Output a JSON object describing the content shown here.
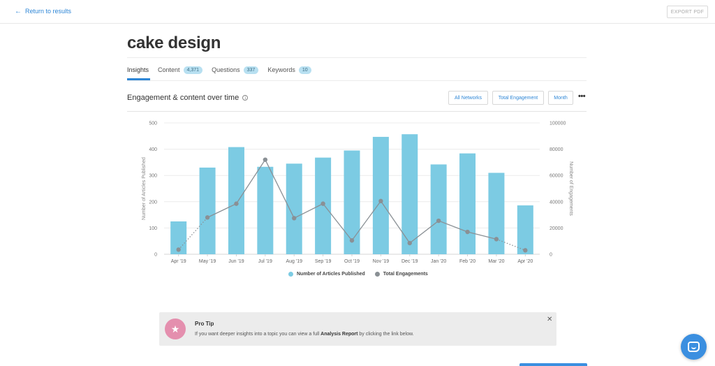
{
  "topbar": {
    "back_label": "Return to results",
    "export_label": "EXPORT PDF"
  },
  "page": {
    "title": "cake design"
  },
  "tabs": [
    {
      "label": "Insights",
      "count": null,
      "active": true
    },
    {
      "label": "Content",
      "count": "4,371",
      "active": false
    },
    {
      "label": "Questions",
      "count": "337",
      "active": false
    },
    {
      "label": "Keywords",
      "count": "10",
      "active": false
    }
  ],
  "section": {
    "title": "Engagement & content over time",
    "info_icon": "info-icon",
    "controls": {
      "networks_label": "All Networks",
      "metric_label": "Total Engagement",
      "period_label": "Month",
      "more_label": "•••"
    }
  },
  "chart_data": {
    "type": "bar+line",
    "categories": [
      "Apr '19",
      "May '19",
      "Jun '19",
      "Jul '19",
      "Aug '19",
      "Sep '19",
      "Oct '19",
      "Nov '19",
      "Dec '19",
      "Jan '20",
      "Feb '20",
      "Mar '20",
      "Apr '20"
    ],
    "series": [
      {
        "name": "Number of Articles Published",
        "type": "bar",
        "axis": "left",
        "color": "#7ccbe3",
        "values": [
          125,
          330,
          408,
          333,
          345,
          368,
          395,
          447,
          457,
          342,
          384,
          310,
          186
        ]
      },
      {
        "name": "Total Engagements",
        "type": "line",
        "axis": "right",
        "color": "#8a9095",
        "values": [
          3500,
          28000,
          38500,
          72000,
          27500,
          38500,
          10500,
          40500,
          8500,
          25500,
          17000,
          11500,
          3000
        ],
        "dashed_segments": [
          0,
          11
        ]
      }
    ],
    "ylabel": "Number of Articles Published",
    "y2label": "Number of Engagements",
    "ylim": [
      0,
      500
    ],
    "y2lim": [
      0,
      100000
    ],
    "yticks": [
      "0",
      "100",
      "200",
      "300",
      "400",
      "500"
    ],
    "y2ticks": [
      "0",
      "20000",
      "40000",
      "60000",
      "80000",
      "100000"
    ],
    "grid": true,
    "legend": "bottom-center"
  },
  "legend": {
    "articles_label": "Number of Articles Published",
    "engagements_label": "Total Engagements",
    "articles_color": "#7ccbe3",
    "engagements_color": "#8a9095"
  },
  "protip": {
    "icon": "star-icon",
    "title": "Pro Tip",
    "text_before": "If you want deeper insights into a topic you can view a full ",
    "text_bold": "Analysis Report",
    "text_after": " by clicking the link below.",
    "close_label": "✕"
  },
  "chat": {
    "icon": "chat-icon"
  },
  "colors": {
    "accent": "#2e86d6",
    "bar": "#7ccbe3",
    "line": "#8a9095",
    "protip_icon": "#e48fae"
  }
}
